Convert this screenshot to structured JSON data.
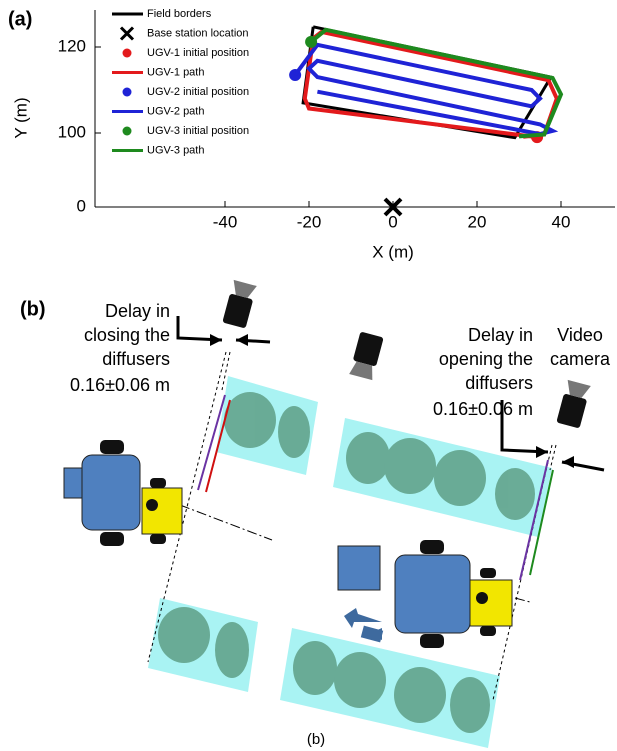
{
  "panel_labels": {
    "a": "(a)",
    "b": "(b)"
  },
  "chart_data": {
    "type": "line",
    "xlabel": "X (m)",
    "ylabel": "Y (m)",
    "xlim": [
      -71,
      53
    ],
    "ylim": [
      0,
      128
    ],
    "xticks": [
      -40,
      -20,
      0,
      20,
      40
    ],
    "yticks": [
      0,
      100,
      120
    ],
    "series": [
      {
        "name": "Field borders",
        "color": "#000000",
        "style": "line",
        "x": [
          -19,
          37.6,
          29,
          -21.4,
          -19
        ],
        "y": [
          124.7,
          113,
          93.7,
          107,
          124.7
        ]
      },
      {
        "name": "Base station location",
        "color": "#000000",
        "style": "cross",
        "x": [
          0
        ],
        "y": [
          0
        ]
      },
      {
        "name": "UGV-1 initial position",
        "color": "#e31a1c",
        "style": "dot",
        "x": [
          34.3
        ],
        "y": [
          94.4
        ]
      },
      {
        "name": "UGV-1 path",
        "color": "#e31a1c",
        "style": "line",
        "x": [
          34.3,
          -20,
          -21,
          -19,
          -17,
          37,
          39,
          36,
          31
        ],
        "y": [
          94.4,
          105.7,
          108,
          122,
          123.5,
          112.3,
          108,
          98,
          95
        ]
      },
      {
        "name": "UGV-2 initial position",
        "color": "#1f23d6",
        "style": "dot",
        "x": [
          -23.3
        ],
        "y": [
          113.5
        ]
      },
      {
        "name": "UGV-2 path",
        "color": "#1f23d6",
        "style": "line",
        "x": [
          -23.3,
          -18,
          33,
          35,
          33,
          -18,
          -20,
          -18,
          35,
          38,
          35,
          -18
        ],
        "y": [
          113.5,
          120.5,
          110,
          108,
          106.2,
          116.8,
          115,
          113,
          102,
          100.5,
          98.6,
          109.6
        ]
      },
      {
        "name": "UGV-3 initial position",
        "color": "#1e8a1e",
        "style": "dot",
        "x": [
          -19.5
        ],
        "y": [
          121.2
        ]
      },
      {
        "name": "UGV-3 path",
        "color": "#1e8a1e",
        "style": "line",
        "x": [
          -19.5,
          -16,
          38,
          40,
          36,
          30
        ],
        "y": [
          121.2,
          124,
          112.8,
          109,
          98,
          95.5
        ]
      }
    ]
  },
  "panel_b": {
    "closing_delay": {
      "lines": [
        "Delay in",
        "closing the",
        "diffusers"
      ],
      "value": "0.16±0.06 m"
    },
    "opening_delay": {
      "lines": [
        "Delay in",
        "opening the",
        "diffusers"
      ],
      "value": "0.16±0.06 m"
    },
    "camera_label": [
      "Video",
      "camera"
    ],
    "caption": "(b)"
  }
}
